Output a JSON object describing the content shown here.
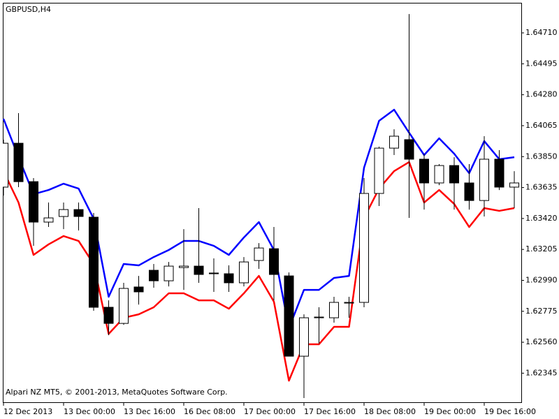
{
  "chart_data": {
    "type": "candlestick",
    "title": "GBPUSD,H4",
    "annotation": "Alpari NZ MT5, © 2001-2013, MetaQuotes Software Corp.",
    "categories": [
      "12 Dec 2013",
      null,
      null,
      null,
      "13 Dec 00:00",
      null,
      null,
      null,
      "13 Dec 16:00",
      null,
      null,
      null,
      "16 Dec 08:00",
      null,
      null,
      null,
      "17 Dec 00:00",
      null,
      null,
      null,
      "17 Dec 16:00",
      null,
      null,
      null,
      "18 Dec 08:00",
      null,
      null,
      null,
      "19 Dec 00:00",
      null,
      null,
      null,
      "19 Dec 16:00",
      null,
      null
    ],
    "open": [
      1.63638,
      1.63943,
      1.63676,
      1.63395,
      1.63434,
      1.63482,
      1.63429,
      1.62803,
      1.62691,
      1.62944,
      1.6306,
      1.62987,
      1.63079,
      1.63089,
      1.63041,
      1.63036,
      1.62973,
      1.63128,
      1.6321,
      1.63021,
      1.62463,
      1.6273,
      1.6273,
      1.62832,
      1.62837,
      1.63594,
      1.63909,
      1.63968,
      1.63832,
      1.63667,
      1.63788,
      1.63667,
      1.63545,
      1.63832,
      1.63638
    ],
    "high": [
      1.63968,
      1.64152,
      1.63701,
      1.63531,
      1.63531,
      1.63531,
      1.63458,
      1.62851,
      1.62973,
      1.63021,
      1.63104,
      1.63118,
      1.63346,
      1.63492,
      1.63143,
      1.63094,
      1.63152,
      1.63249,
      1.63361,
      1.63045,
      1.62754,
      1.62803,
      1.62876,
      1.62876,
      1.63701,
      1.63919,
      1.6404,
      1.64841,
      1.6387,
      1.63798,
      1.63846,
      1.63798,
      1.63992,
      1.63895,
      1.63749
    ],
    "low": [
      1.63579,
      1.63638,
      1.6323,
      1.63361,
      1.63346,
      1.63337,
      1.62779,
      1.62609,
      1.62681,
      1.62822,
      1.62939,
      1.62948,
      1.62924,
      1.62973,
      1.6291,
      1.6291,
      1.62948,
      1.6307,
      1.62851,
      1.62463,
      1.62172,
      1.6255,
      1.62696,
      1.6273,
      1.62803,
      1.63507,
      1.63861,
      1.63424,
      1.63482,
      1.63652,
      1.63482,
      1.63482,
      1.63434,
      1.63618,
      1.63492
    ],
    "close": [
      1.63943,
      1.63676,
      1.63395,
      1.63424,
      1.63482,
      1.63434,
      1.62803,
      1.62691,
      1.62934,
      1.6291,
      1.62987,
      1.63089,
      1.63089,
      1.63031,
      1.63036,
      1.62973,
      1.63118,
      1.63215,
      1.63031,
      1.62463,
      1.6273,
      1.62735,
      1.62837,
      1.62837,
      1.63594,
      1.63909,
      1.63992,
      1.63832,
      1.63667,
      1.63788,
      1.63667,
      1.63545,
      1.63832,
      1.63638,
      1.63667
    ],
    "up_color": "#ffffff",
    "down_color": "#000000",
    "wick_color": "#000000",
    "lines": [
      {
        "color": "#0000ff",
        "values": [
          1.64113,
          1.63846,
          1.63589,
          1.63618,
          1.63662,
          1.63628,
          1.63419,
          1.62876,
          1.63104,
          1.63094,
          1.63152,
          1.63201,
          1.63264,
          1.63264,
          1.6323,
          1.63167,
          1.63288,
          1.63395,
          1.63201,
          1.62657,
          1.62924,
          1.62924,
          1.63007,
          1.63021,
          1.63773,
          1.64099,
          1.64176,
          1.64016,
          1.63861,
          1.63977,
          1.6387,
          1.63735,
          1.63958,
          1.63832,
          1.63846
        ]
      },
      {
        "color": "#ff0000",
        "values": [
          1.63749,
          1.63531,
          1.63167,
          1.6324,
          1.63298,
          1.63264,
          1.63104,
          1.62618,
          1.6273,
          1.62754,
          1.62803,
          1.629,
          1.629,
          1.62851,
          1.62851,
          1.62793,
          1.629,
          1.63021,
          1.62842,
          1.62293,
          1.62546,
          1.62546,
          1.62667,
          1.62667,
          1.63424,
          1.63628,
          1.63749,
          1.63812,
          1.63531,
          1.63618,
          1.63521,
          1.63361,
          1.63492,
          1.63473,
          1.63492
        ]
      }
    ],
    "ylim": [
      1.62143,
      1.64919
    ],
    "yticks": [
      {
        "value": 1.6471,
        "label": "1.64710"
      },
      1.64495,
      {
        "value": 1.6428,
        "label": "1.64280"
      },
      1.64065,
      {
        "value": 1.6385,
        "label": "1.63850"
      },
      1.63635,
      {
        "value": 1.6342,
        "label": "1.63420"
      },
      1.63205,
      {
        "value": 1.6299,
        "label": "1.62990"
      },
      1.62775,
      {
        "value": 1.6256,
        "label": "1.62560"
      },
      1.62345
    ],
    "grid": false
  }
}
